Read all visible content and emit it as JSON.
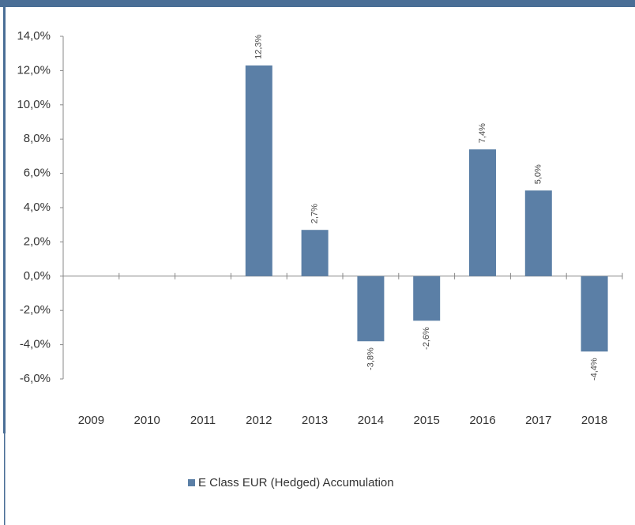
{
  "chart_data": {
    "type": "bar",
    "categories": [
      "2009",
      "2010",
      "2011",
      "2012",
      "2013",
      "2014",
      "2015",
      "2016",
      "2017",
      "2018"
    ],
    "series": [
      {
        "name": "E Class EUR (Hedged) Accumulation",
        "color": "#5b7fa6",
        "values": [
          null,
          null,
          null,
          12.3,
          2.7,
          -3.8,
          -2.6,
          7.4,
          5.0,
          -4.4
        ],
        "value_labels": [
          null,
          null,
          null,
          "12,3%",
          "2,7%",
          "-3,8%",
          "-2,6%",
          "7,4%",
          "5,0%",
          "-4,4%"
        ]
      }
    ],
    "ylim": [
      -6,
      14
    ],
    "yticks": [
      {
        "value": -6,
        "label": "-6,0%"
      },
      {
        "value": -4,
        "label": "-4,0%"
      },
      {
        "value": -2,
        "label": "-2,0%"
      },
      {
        "value": 0,
        "label": "0,0%"
      },
      {
        "value": 2,
        "label": "2,0%"
      },
      {
        "value": 4,
        "label": "4,0%"
      },
      {
        "value": 6,
        "label": "6,0%"
      },
      {
        "value": 8,
        "label": "8,0%"
      },
      {
        "value": 10,
        "label": "10,0%"
      },
      {
        "value": 12,
        "label": "12,0%"
      },
      {
        "value": 14,
        "label": "14,0%"
      }
    ],
    "legend": "bottom"
  }
}
